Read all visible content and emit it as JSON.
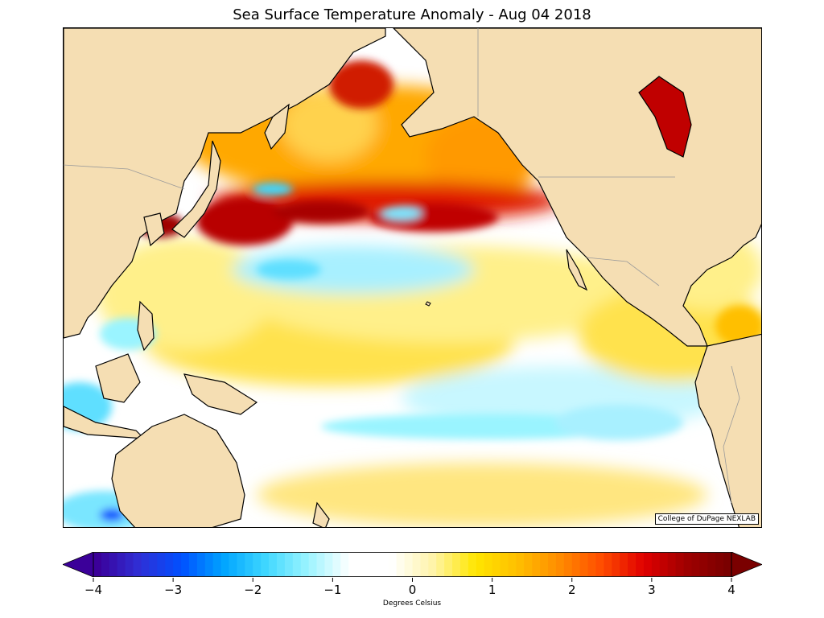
{
  "title": "Sea Surface Temperature Anomaly - Aug 04 2018",
  "credit": "College of DuPage NEXLAB",
  "colorbar": {
    "label": "Degrees Celsius",
    "min": -4,
    "max": 4,
    "extend": "both",
    "tick_labels": [
      "−4",
      "−3",
      "−2",
      "−1",
      "0",
      "1",
      "2",
      "3",
      "4"
    ],
    "tick_values": [
      -4,
      -3,
      -2,
      -1,
      0,
      1,
      2,
      3,
      4
    ],
    "colors": [
      "#3b0099",
      "#2f2fd6",
      "#0050ff",
      "#00a4ff",
      "#3fd7ff",
      "#9af4ff",
      "#ffffff",
      "#ffffff",
      "#fff4a8",
      "#ffe600",
      "#ffbf00",
      "#ff8c00",
      "#ff4d00",
      "#e00000",
      "#a00000",
      "#7a0000"
    ]
  },
  "map": {
    "region": "North Pacific Ocean",
    "land_color": "#f5deb3",
    "coast_color": "#000000",
    "border_color": "#9a9a9a"
  }
}
